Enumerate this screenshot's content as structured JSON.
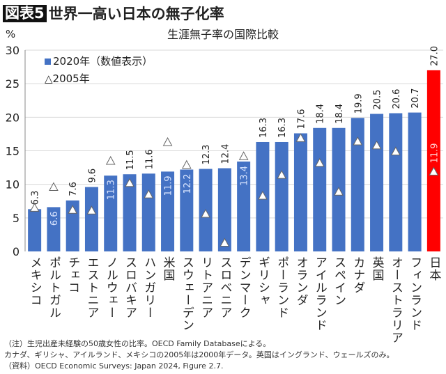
{
  "header": {
    "badge": "図表5",
    "title": "世界一高い日本の無子化率"
  },
  "chart_data": {
    "type": "bar",
    "title": "生涯無子率の国際比較",
    "ylabel": "%",
    "ylim": [
      0,
      30
    ],
    "yticks": [
      "0",
      "5",
      "10",
      "15",
      "20",
      "25",
      "30"
    ],
    "grid": true,
    "legend_position": "top-left",
    "categories": [
      "メキシコ",
      "ポルトガル",
      "チェコ",
      "エストニア",
      "ノルウェー",
      "スロバキア",
      "ハンガリー",
      "米国",
      "スウェーデン",
      "リトアニア",
      "スロベニア",
      "デンマーク",
      "ギリシャ",
      "ポーランド",
      "オランダ",
      "アイルランド",
      "スペイン",
      "カナダ",
      "英国",
      "オーストラリア",
      "フィンランド",
      "日本"
    ],
    "series": [
      {
        "name": "2020年（数値表示）",
        "type": "bar",
        "values": [
          6.3,
          6.6,
          7.6,
          9.6,
          11.3,
          11.5,
          11.6,
          11.9,
          12.2,
          12.3,
          12.4,
          13.4,
          16.3,
          16.3,
          17.6,
          18.4,
          18.4,
          19.9,
          20.5,
          20.6,
          20.7,
          27.0
        ],
        "labels": [
          "6.3",
          "6.6",
          "7.6",
          "9.6",
          "11.3",
          "11.5",
          "11.6",
          "11.9",
          "12.2",
          "12.3",
          "12.4",
          "13.4",
          "16.3",
          "16.3",
          "17.6",
          "18.4",
          "18.4",
          "19.9",
          "20.5",
          "20.6",
          "20.7",
          "27.0"
        ],
        "label_inside": [
          false,
          true,
          false,
          false,
          true,
          false,
          false,
          true,
          true,
          false,
          false,
          true,
          false,
          false,
          false,
          false,
          false,
          false,
          false,
          false,
          false,
          false
        ]
      },
      {
        "name": "2005年",
        "type": "marker",
        "values": [
          6.5,
          9.6,
          6.2,
          6.1,
          13.5,
          10.2,
          8.5,
          16.3,
          12.9,
          5.6,
          1.3,
          14.2,
          8.3,
          11.4,
          16.9,
          13.2,
          8.9,
          16.4,
          15.8,
          14.9,
          null,
          11.9
        ],
        "labels": [
          null,
          null,
          null,
          null,
          null,
          null,
          null,
          null,
          null,
          null,
          null,
          null,
          null,
          null,
          null,
          null,
          null,
          null,
          null,
          null,
          null,
          "11.9"
        ]
      }
    ],
    "colors": {
      "bar": "#4472c4",
      "highlight": "#ff0000",
      "highlight_category": "日本"
    }
  },
  "notes": [
    "（注）生児出産未経験の50歳女性の比率。OECD Family Databaseによる。",
    "カナダ、ギリシャ、アイルランド、メキシコの2005年は2000年データ。英国はイングランド、ウェールズのみ。",
    "（資料）OECD Economic Surveys: Japan 2024, Figure 2.7."
  ]
}
